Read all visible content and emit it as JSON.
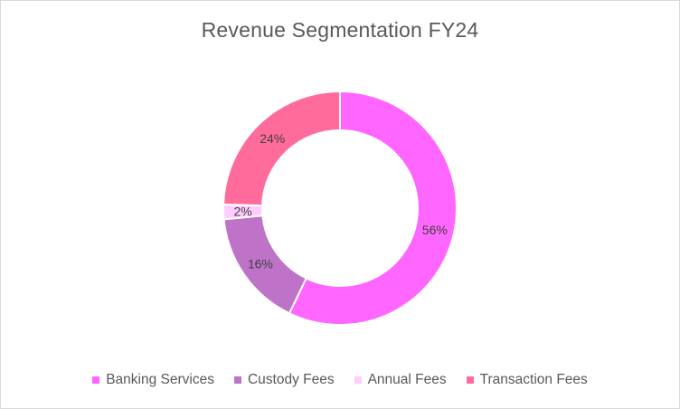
{
  "chart_data": {
    "type": "pie",
    "title": "Revenue Segmentation FY24",
    "categories": [
      "Banking Services",
      "Custody Fees",
      "Annual Fees",
      "Transaction Fees"
    ],
    "values": [
      56,
      16,
      2,
      24
    ],
    "data_labels": [
      "56%",
      "16%",
      "2%",
      "24%"
    ],
    "colors": [
      "#FF66FF",
      "#BF73C8",
      "#FFCCFF",
      "#FF6C9C"
    ],
    "donut": true,
    "legend_position": "bottom"
  }
}
